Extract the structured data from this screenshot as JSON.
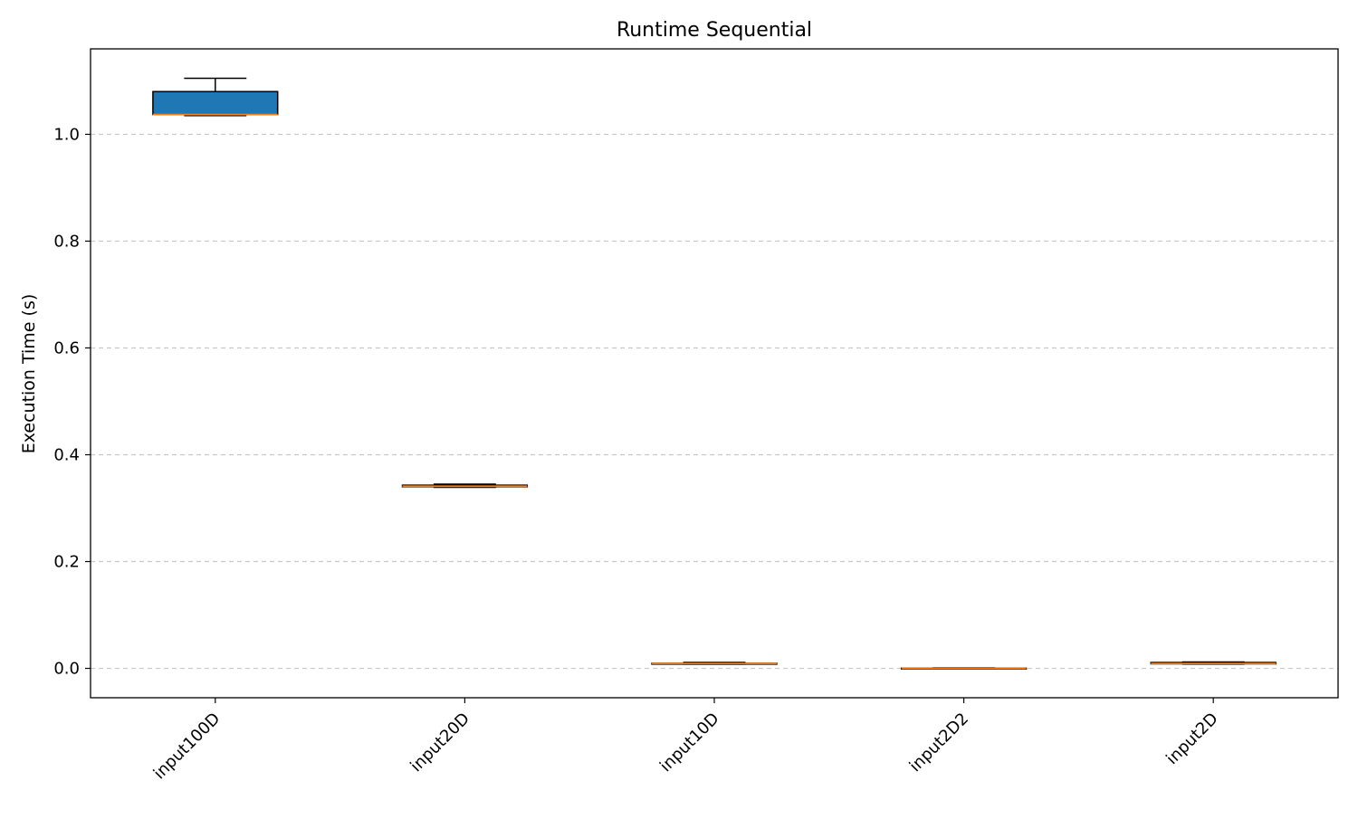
{
  "chart_data": {
    "type": "box",
    "title": "Runtime Sequential",
    "xlabel": "",
    "ylabel": "Execution Time (s)",
    "ylim": [
      -0.055,
      1.16
    ],
    "yticks": [
      "0.0",
      "0.2",
      "0.4",
      "0.6",
      "0.8",
      "1.0"
    ],
    "grid": "y dashed",
    "categories": [
      "input100D",
      "input20D",
      "input10D",
      "input2D2",
      "input2D"
    ],
    "boxes": [
      {
        "min": 1.035,
        "q1": 1.037,
        "median": 1.037,
        "q3": 1.08,
        "max": 1.105
      },
      {
        "min": 0.339,
        "q1": 0.34,
        "median": 0.341,
        "q3": 0.343,
        "max": 0.345
      },
      {
        "min": 0.008,
        "q1": 0.0085,
        "median": 0.009,
        "q3": 0.0095,
        "max": 0.011
      },
      {
        "min": 0.0,
        "q1": 0.0,
        "median": 0.0,
        "q3": 0.0005,
        "max": 0.001
      },
      {
        "min": 0.008,
        "q1": 0.0085,
        "median": 0.009,
        "q3": 0.011,
        "max": 0.012
      }
    ],
    "colors": {
      "box_fill": "#1f77b4",
      "box_edge": "#000000",
      "median": "#ff7f0e",
      "grid": "#c8c8c8"
    }
  }
}
